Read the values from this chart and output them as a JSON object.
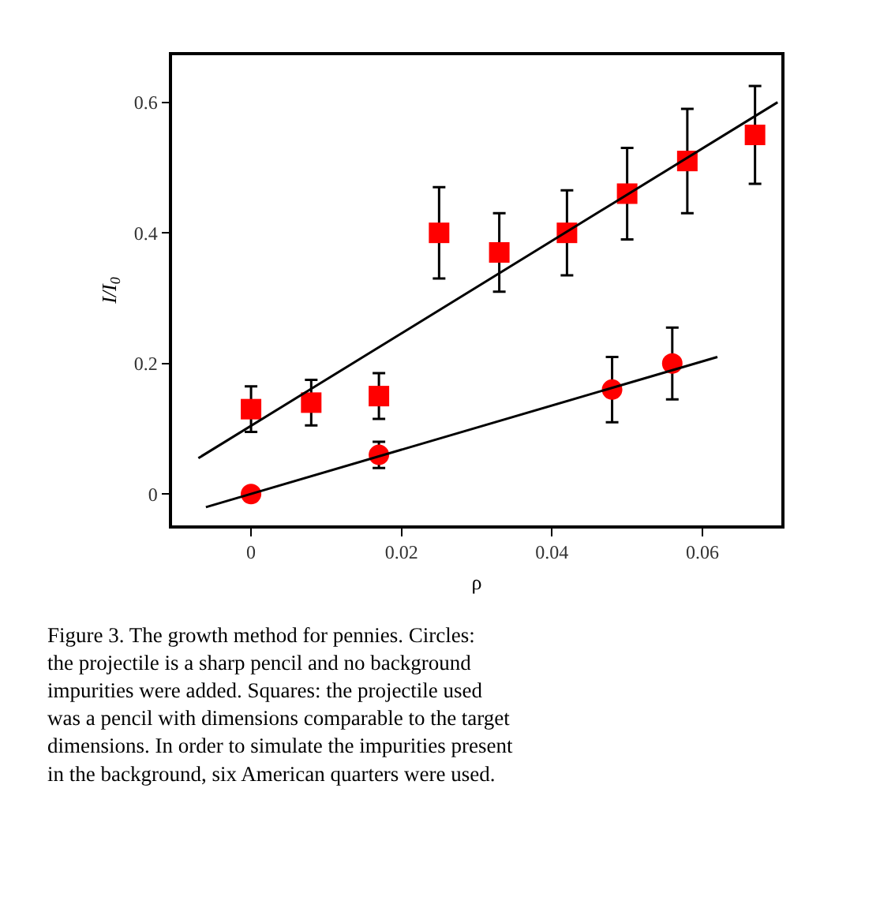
{
  "chart_data": {
    "type": "scatter",
    "xlabel": "ρ",
    "ylabel": "I/I$_{0}$",
    "xlim": [
      -0.0105,
      0.0705
    ],
    "ylim": [
      -0.048,
      0.672
    ],
    "xticks": [
      0,
      0.02,
      0.04,
      0.06
    ],
    "yticks": [
      0,
      0.2,
      0.4,
      0.6
    ],
    "series": [
      {
        "marker": "square",
        "color": "#ff0000",
        "x": [
          0,
          0.008,
          0.017,
          0.025,
          0.033,
          0.042,
          0.05,
          0.058,
          0.067
        ],
        "values": [
          0.13,
          0.14,
          0.15,
          0.4,
          0.37,
          0.4,
          0.46,
          0.51,
          0.55
        ],
        "errors": [
          0.035,
          0.035,
          0.035,
          0.07,
          0.06,
          0.065,
          0.07,
          0.08,
          0.075
        ]
      },
      {
        "marker": "circle",
        "color": "#ff0000",
        "x": [
          0,
          0.017,
          0.048,
          0.056
        ],
        "values": [
          0,
          0.06,
          0.16,
          0.2
        ],
        "errors": [
          null,
          0.02,
          0.05,
          0.055
        ]
      },
      {
        "type": "line",
        "color": "#000000",
        "x": [
          -0.007,
          0.07
        ],
        "values": [
          0.055,
          0.6
        ]
      },
      {
        "type": "line",
        "color": "#000000",
        "x": [
          -0.006,
          0.062
        ],
        "values": [
          -0.02,
          0.21
        ]
      }
    ],
    "annotations": [
      "Figure 3. The growth method for pennies. Circles:\nthe projectile is a sharp pencil and no background\nimpurities were added. Squares: the projectile used\nwas a pencil with dimensions comparable to the target\ndimensions. In order to simulate the impurities present\nin the background, six American quarters were used."
    ]
  }
}
